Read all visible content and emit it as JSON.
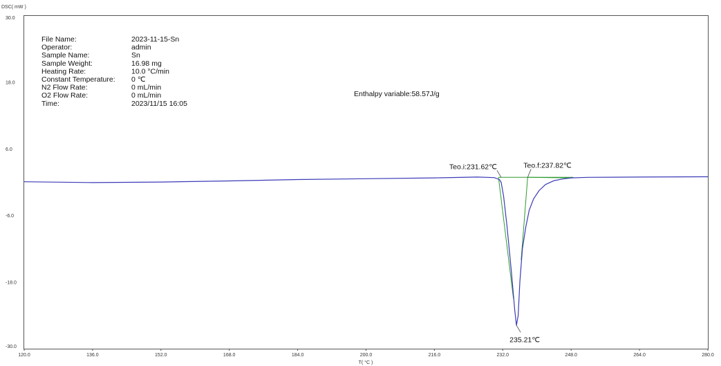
{
  "chart_data": {
    "type": "line",
    "xlabel": "T( °C )",
    "ylabel": "DSC( mW )",
    "xlim": [
      120.0,
      280.0
    ],
    "ylim": [
      -30.0,
      30.0
    ],
    "x_ticks": [
      "120.0",
      "136.0",
      "152.0",
      "168.0",
      "184.0",
      "200.0",
      "216.0",
      "232.0",
      "248.0",
      "264.0",
      "280.0"
    ],
    "y_ticks": [
      "30.0",
      "18.0",
      "6.0",
      "-6.0",
      "-18.0",
      "-30.0"
    ],
    "grid": false,
    "colors": {
      "curve": "#3a3ab8",
      "tangent": "#2e9a2e",
      "axis": "#555555",
      "leader": "#444444"
    },
    "series": [
      {
        "x": [
          120,
          136,
          152,
          168,
          184,
          200,
          216,
          226,
          230,
          231.2,
          231.62,
          232.2,
          233,
          234,
          234.8,
          235.21,
          235.6,
          236,
          236.6,
          237.4,
          238.2,
          239.2,
          240.5,
          242,
          244,
          246,
          248,
          252,
          264,
          280
        ],
        "y": [
          0.1,
          -0.05,
          0.05,
          0.25,
          0.5,
          0.65,
          0.8,
          0.95,
          0.85,
          0.5,
          0.0,
          -2.5,
          -8.0,
          -16.0,
          -23.0,
          -25.8,
          -24.0,
          -18.0,
          -12.0,
          -8.0,
          -5.0,
          -3.0,
          -1.5,
          -0.4,
          0.3,
          0.6,
          0.8,
          0.9,
          0.95,
          1.0
        ]
      }
    ],
    "baseline": {
      "x": [
        231.0,
        248.5
      ],
      "y": [
        0.9,
        0.9
      ]
    },
    "tangents": [
      {
        "x": [
          231.0,
          234.5
        ],
        "y": [
          0.9,
          -21.0
        ]
      },
      {
        "x": [
          236.3,
          237.82
        ],
        "y": [
          -14.0,
          0.9
        ]
      },
      {
        "x": [
          237.82,
          247.5
        ],
        "y": [
          0.9,
          0.8
        ]
      }
    ],
    "annotations": {
      "onset": {
        "label": "Teo.i:231.62℃",
        "x": 231.62,
        "y": 0.9
      },
      "endset": {
        "label": "Teo.f:237.82℃",
        "x": 237.82,
        "y": 0.9
      },
      "peak": {
        "label": "235.21℃",
        "x": 235.21,
        "y": -25.8
      },
      "enthalpy": "Enthalpy variable:58.57J/g"
    },
    "info": [
      {
        "key": "File Name:",
        "value": "2023-11-15-Sn"
      },
      {
        "key": "Operator:",
        "value": " admin"
      },
      {
        "key": "Sample Name:",
        "value": "Sn"
      },
      {
        "key": "Sample Weight:",
        "value": "16.98 mg"
      },
      {
        "key": "Heating Rate:",
        "value": "10.0 °C/min"
      },
      {
        "key": "Constant Temperature:",
        "value": "0 ℃"
      },
      {
        "key": "N2 Flow Rate:",
        "value": "  0 mL/min"
      },
      {
        "key": "O2 Flow Rate:",
        "value": "  0 mL/min"
      },
      {
        "key": "Time:",
        "value": " 2023/11/15 16:05"
      }
    ]
  }
}
